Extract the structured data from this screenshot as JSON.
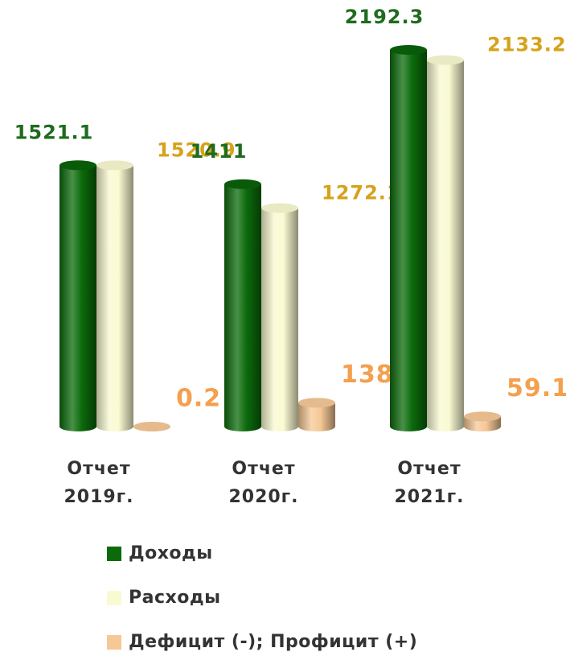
{
  "chart_data": {
    "type": "bar",
    "categories": [
      "Отчет 2019г.",
      "Отчет 2020г.",
      "Отчет 2021г."
    ],
    "series": [
      {
        "name": "Доходы",
        "color": "#0b6b0b",
        "label_color": "#1f6b1f",
        "values": [
          1521.1,
          1411,
          2192.3
        ]
      },
      {
        "name": "Расходы",
        "color": "#fafad2",
        "label_color": "#d6a21a",
        "values": [
          1520.9,
          1272.1,
          2133.2
        ]
      },
      {
        "name": "Дефицит (-); Профицит (+)",
        "color": "#f6c896",
        "label_color": "#f4a04e",
        "values": [
          0.2,
          138.9,
          59.1
        ]
      }
    ],
    "legend": "bottom"
  }
}
